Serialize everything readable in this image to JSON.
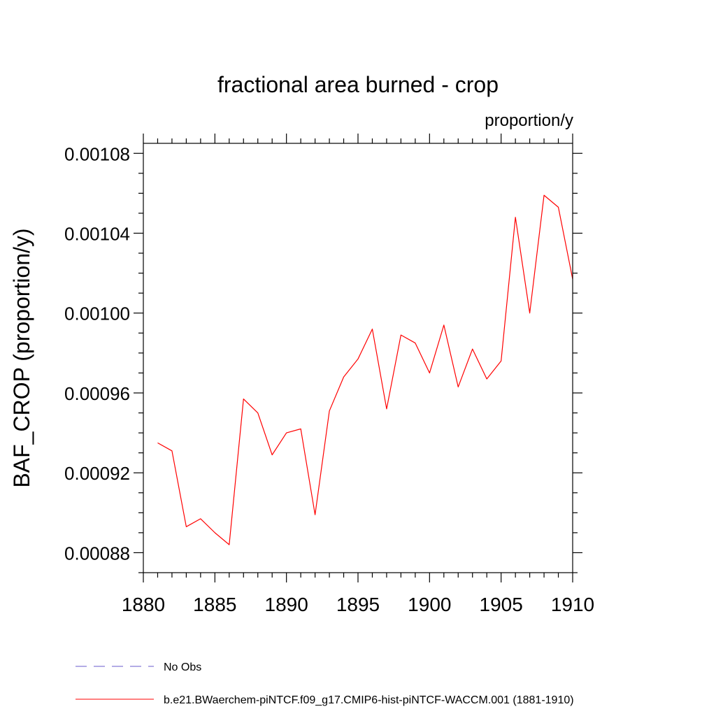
{
  "chart_data": {
    "type": "line",
    "title": "fractional area burned - crop",
    "units_label": "proportion/y",
    "ylabel": "BAF_CROP  (proportion/y)",
    "xlabel": "",
    "xlim": [
      1880,
      1910
    ],
    "ylim": [
      0.00087,
      0.001085
    ],
    "x_ticks": [
      1880,
      1885,
      1890,
      1895,
      1900,
      1905,
      1910
    ],
    "x_tick_labels": [
      "1880",
      "1885",
      "1890",
      "1895",
      "1900",
      "1905",
      "1910"
    ],
    "y_ticks": [
      0.00088,
      0.00092,
      0.00096,
      0.001,
      0.00104,
      0.00108
    ],
    "y_tick_labels": [
      "0.00088",
      "0.00092",
      "0.00096",
      "0.00100",
      "0.00104",
      "0.00108"
    ],
    "x_minor_step": 1,
    "y_minor_step": 1e-05,
    "grid": false,
    "legend_position": "bottom",
    "series": [
      {
        "name": "b.e21.BWaerchem-piNTCF.f09_g17.CMIP6-hist-piNTCF-WACCM.001 (1881-1910)",
        "color": "#ff0000",
        "style": "solid",
        "x": [
          1881,
          1882,
          1883,
          1884,
          1885,
          1886,
          1887,
          1888,
          1889,
          1890,
          1891,
          1892,
          1893,
          1894,
          1895,
          1896,
          1897,
          1898,
          1899,
          1900,
          1901,
          1902,
          1903,
          1904,
          1905,
          1906,
          1907,
          1908,
          1909,
          1910
        ],
        "values": [
          0.000935,
          0.000931,
          0.000893,
          0.000897,
          0.00089,
          0.000884,
          0.000957,
          0.00095,
          0.000929,
          0.00094,
          0.000942,
          0.000899,
          0.000951,
          0.000968,
          0.000977,
          0.000992,
          0.000952,
          0.000989,
          0.000985,
          0.00097,
          0.000994,
          0.000963,
          0.000982,
          0.000967,
          0.000976,
          0.001048,
          0.001,
          0.001059,
          0.001053,
          0.001017
        ]
      }
    ],
    "legend": [
      {
        "label": "No Obs",
        "color": "#6a5acd",
        "style": "dashed"
      },
      {
        "label": "b.e21.BWaerchem-piNTCF.f09_g17.CMIP6-hist-piNTCF-WACCM.001 (1881-1910)",
        "color": "#ff0000",
        "style": "solid"
      }
    ]
  }
}
